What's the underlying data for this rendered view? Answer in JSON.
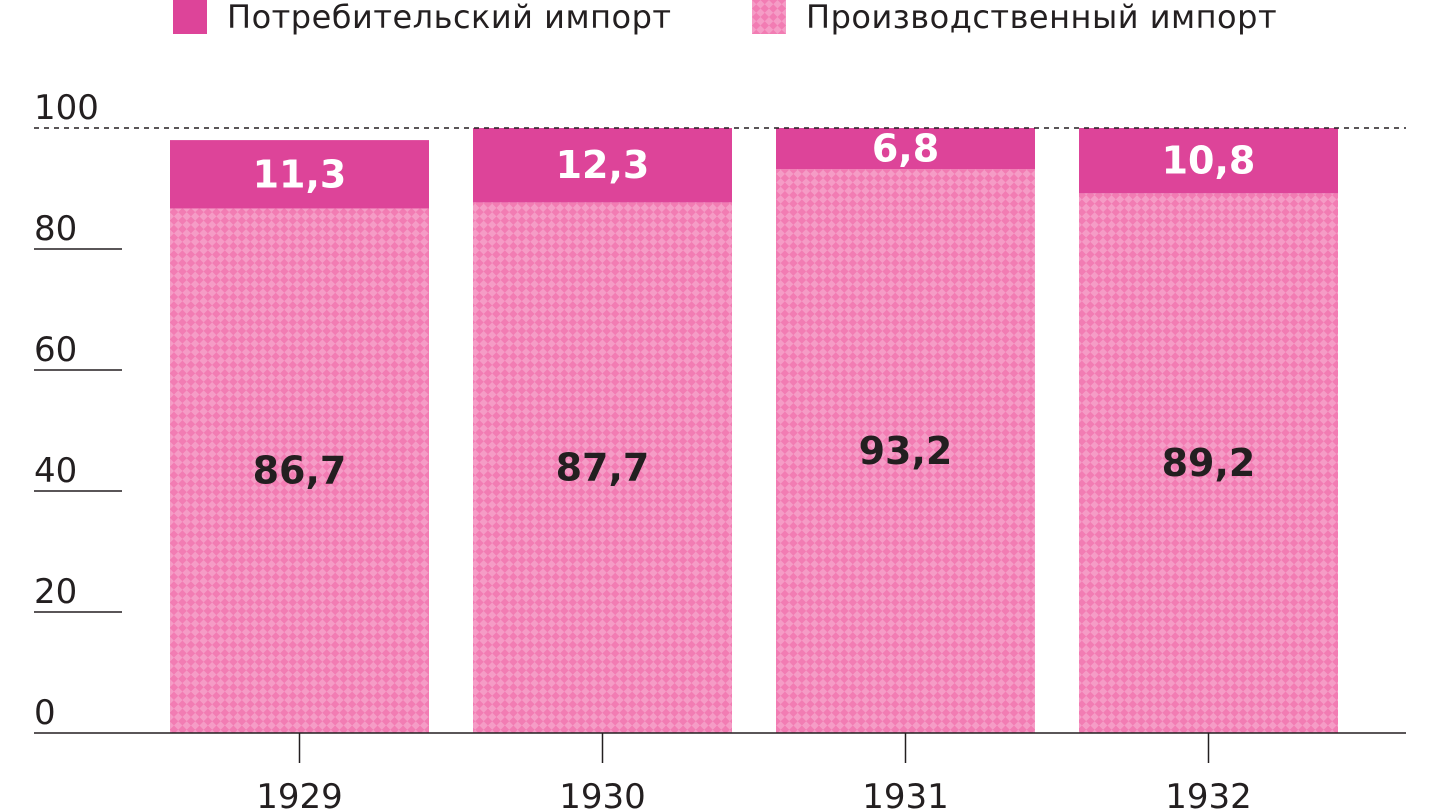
{
  "chart_data": {
    "type": "bar",
    "stacked": true,
    "categories": [
      "1929",
      "1930",
      "1931",
      "1932"
    ],
    "series": [
      {
        "name": "Производственный импорт",
        "values": [
          86.7,
          87.7,
          93.2,
          89.2
        ],
        "color": "#f27cb3",
        "pattern": "checkered"
      },
      {
        "name": "Потребительский импорт",
        "values": [
          11.3,
          12.3,
          6.8,
          10.8
        ],
        "color": "#dd4499"
      }
    ],
    "y_ticks": [
      "0",
      "20",
      "40",
      "60",
      "80",
      "100"
    ],
    "ylim": [
      0,
      100
    ],
    "reference_line": 100,
    "legend_position": "top"
  }
}
